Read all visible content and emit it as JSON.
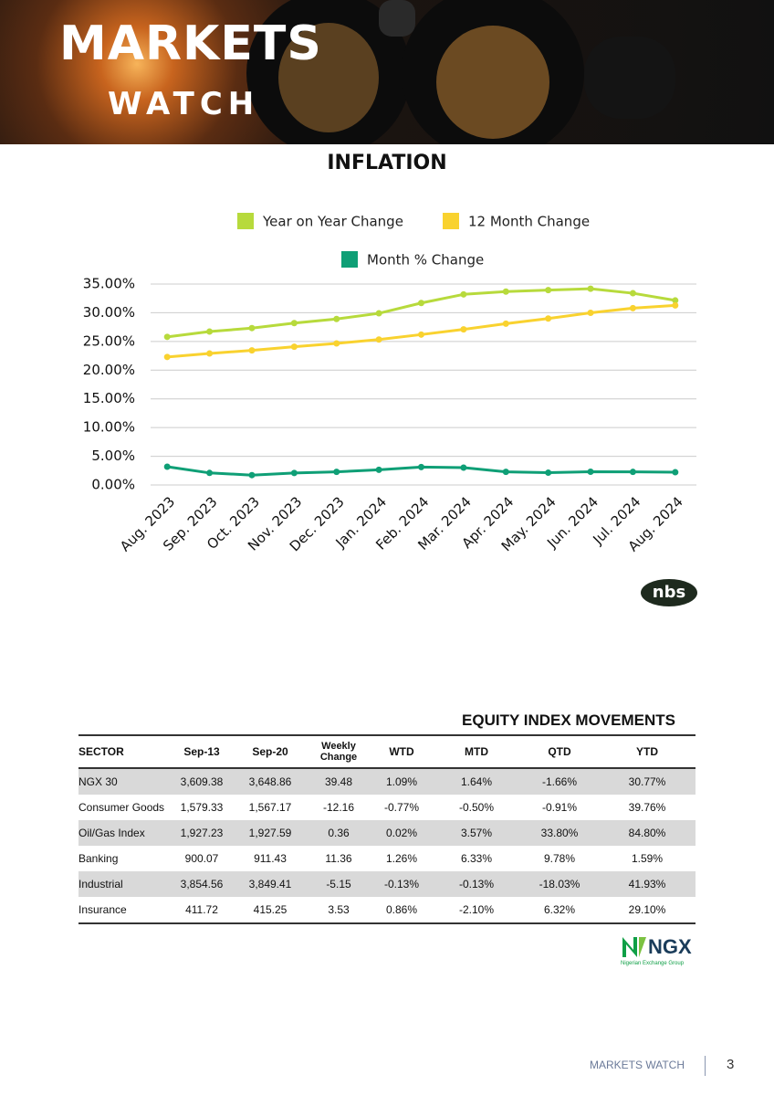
{
  "header": {
    "title": "MARKETS",
    "subtitle": "WATCH"
  },
  "chart_data": {
    "type": "line",
    "title": "INFLATION",
    "categories": [
      "Aug. 2023",
      "Sep. 2023",
      "Oct. 2023",
      "Nov. 2023",
      "Dec. 2023",
      "Jan. 2024",
      "Feb. 2024",
      "Mar. 2024",
      "Apr. 2024",
      "May. 2024",
      "Jun. 2024",
      "Jul. 2024",
      "Aug. 2024"
    ],
    "series": [
      {
        "name": "Year on Year Change",
        "color": "#b7da3c",
        "values": [
          25.8,
          26.72,
          27.33,
          28.2,
          28.92,
          29.9,
          31.7,
          33.2,
          33.69,
          33.95,
          34.19,
          33.4,
          32.15
        ]
      },
      {
        "name": "12 Month Change",
        "color": "#f9d22f",
        "values": [
          22.3,
          22.9,
          23.45,
          24.08,
          24.66,
          25.34,
          26.2,
          27.1,
          28.1,
          29.0,
          29.99,
          30.8,
          31.28
        ]
      },
      {
        "name": "Month % Change",
        "color": "#0f9f76",
        "values": [
          3.18,
          2.1,
          1.72,
          2.09,
          2.29,
          2.64,
          3.12,
          3.02,
          2.29,
          2.14,
          2.31,
          2.28,
          2.22
        ]
      }
    ],
    "ylim": [
      0,
      35
    ],
    "yticks": [
      {
        "value": 0,
        "label": "0.00%"
      },
      {
        "value": 5,
        "label": "5.00%"
      },
      {
        "value": 10,
        "label": "10.00%"
      },
      {
        "value": 15,
        "label": "15.00%"
      },
      {
        "value": 20,
        "label": "20.00%"
      },
      {
        "value": 25,
        "label": "25.00%"
      },
      {
        "value": 30,
        "label": "30.00%"
      },
      {
        "value": 35,
        "label": "35.00%"
      }
    ],
    "grid": true
  },
  "logos": {
    "nbs": "nbs",
    "ngx": "NGX",
    "ngx_sub": "Nigerian Exchange Group"
  },
  "table": {
    "title": "EQUITY INDEX MOVEMENTS",
    "columns": [
      "SECTOR",
      "Sep-13",
      "Sep-20",
      "Weekly Change",
      "WTD",
      "MTD",
      "QTD",
      "YTD"
    ],
    "rows": [
      [
        "NGX 30",
        "3,609.38",
        "3,648.86",
        "39.48",
        "1.09%",
        "1.64%",
        "-1.66%",
        "30.77%"
      ],
      [
        "Consumer Goods",
        "1,579.33",
        "1,567.17",
        "-12.16",
        "-0.77%",
        "-0.50%",
        "-0.91%",
        "39.76%"
      ],
      [
        "Oil/Gas Index",
        "1,927.23",
        "1,927.59",
        "0.36",
        "0.02%",
        "3.57%",
        "33.80%",
        "84.80%"
      ],
      [
        "Banking",
        "900.07",
        "911.43",
        "11.36",
        "1.26%",
        "6.33%",
        "9.78%",
        "1.59%"
      ],
      [
        "Industrial",
        "3,854.56",
        "3,849.41",
        "-5.15",
        "-0.13%",
        "-0.13%",
        "-18.03%",
        "41.93%"
      ],
      [
        "Insurance",
        "411.72",
        "415.25",
        "3.53",
        "0.86%",
        "-2.10%",
        "6.32%",
        "29.10%"
      ]
    ]
  },
  "footer": {
    "label": "MARKETS WATCH",
    "page": "3"
  }
}
